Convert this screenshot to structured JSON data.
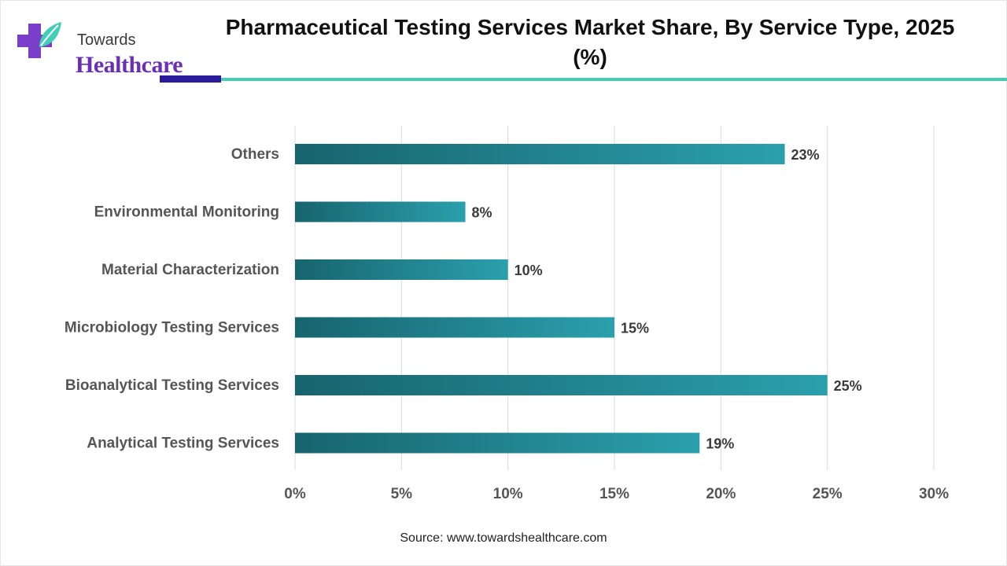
{
  "logo": {
    "line1": "Towards",
    "line2": "Healthcare",
    "icon": "medical-cross-leaf-icon"
  },
  "title": "Pharmaceutical Testing Services Market Share, By Service Type, 2025 (%)",
  "source": "Source: www.towardshealthcare.com",
  "colors": {
    "bar_dark": "#17646e",
    "bar_light": "#2ba0ad",
    "grid": "#d9d9d9",
    "rule_dark": "#2a1a9c",
    "rule_teal": "#3fcfb4",
    "logo_purple": "#6a2fb4"
  },
  "chart_data": {
    "type": "bar",
    "orientation": "horizontal",
    "title": "Pharmaceutical Testing Services Market Share, By Service Type, 2025 (%)",
    "categories": [
      "Others",
      "Environmental Monitoring",
      "Material Characterization",
      "Microbiology Testing Services",
      "Bioanalytical Testing Services",
      "Analytical Testing Services"
    ],
    "values": [
      23,
      8,
      10,
      15,
      25,
      19
    ],
    "value_labels": [
      "23%",
      "8%",
      "10%",
      "15%",
      "25%",
      "19%"
    ],
    "xlim": [
      0,
      30
    ],
    "xticks": [
      0,
      5,
      10,
      15,
      20,
      25,
      30
    ],
    "xtick_labels": [
      "0%",
      "5%",
      "10%",
      "15%",
      "20%",
      "25%",
      "30%"
    ],
    "grid": true,
    "legend": "none"
  }
}
